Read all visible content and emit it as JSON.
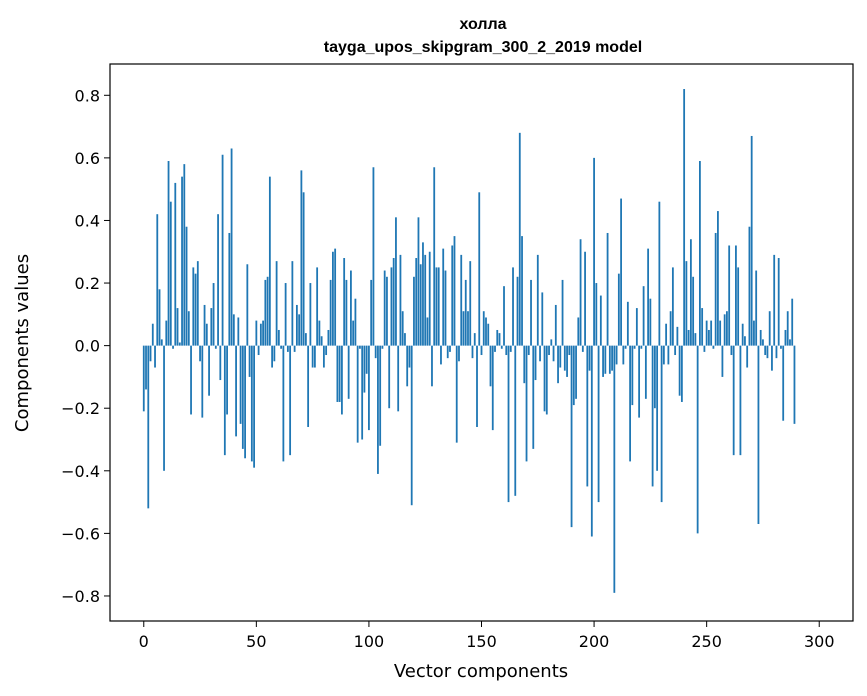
{
  "chart_data": {
    "type": "bar",
    "title": "холла",
    "subtitle": "tayga_upos_skipgram_300_2_2019 model",
    "xlabel": "Vector components",
    "ylabel": "Components values",
    "xlim": [
      -15,
      315
    ],
    "ylim": [
      -0.88,
      0.9
    ],
    "x_ticks": [
      0,
      50,
      100,
      150,
      200,
      250,
      300
    ],
    "y_ticks": [
      -0.8,
      -0.6,
      -0.4,
      -0.2,
      0.0,
      0.2,
      0.4,
      0.6,
      0.8
    ],
    "y_tick_labels": [
      "−0.8",
      "−0.6",
      "−0.4",
      "−0.2",
      "0.0",
      "0.2",
      "0.4",
      "0.6",
      "0.8"
    ],
    "grid": false,
    "bar_color": "#1f77b4",
    "values": [
      -0.21,
      -0.14,
      -0.52,
      -0.05,
      0.07,
      -0.07,
      0.42,
      0.18,
      0.02,
      -0.4,
      0.08,
      0.59,
      0.46,
      -0.01,
      0.52,
      0.12,
      0.01,
      0.54,
      0.58,
      0.38,
      0.11,
      -0.22,
      0.25,
      0.23,
      0.27,
      -0.05,
      -0.23,
      0.13,
      0.07,
      -0.16,
      0.12,
      0.2,
      -0.01,
      0.42,
      -0.11,
      0.61,
      -0.35,
      -0.22,
      0.36,
      0.63,
      0.1,
      -0.29,
      0.09,
      -0.25,
      -0.33,
      -0.36,
      0.26,
      -0.1,
      -0.37,
      -0.39,
      0.08,
      -0.03,
      0.07,
      0.08,
      0.21,
      0.22,
      0.54,
      -0.07,
      -0.05,
      0.27,
      0.05,
      -0.01,
      -0.37,
      0.2,
      -0.02,
      -0.35,
      0.27,
      -0.02,
      0.13,
      0.1,
      0.56,
      0.49,
      0.04,
      -0.26,
      0.2,
      -0.07,
      -0.07,
      0.25,
      0.08,
      0.03,
      -0.07,
      -0.03,
      0.05,
      0.21,
      0.3,
      0.31,
      -0.18,
      -0.18,
      -0.22,
      0.28,
      0.21,
      -0.17,
      0.24,
      0.08,
      0.15,
      -0.31,
      -0.01,
      -0.3,
      -0.15,
      -0.09,
      -0.27,
      0.21,
      0.57,
      -0.04,
      -0.41,
      -0.32,
      -0.01,
      0.24,
      0.22,
      -0.2,
      0.25,
      0.28,
      0.41,
      -0.21,
      0.29,
      0.11,
      0.04,
      -0.13,
      -0.07,
      -0.51,
      0.22,
      0.28,
      0.41,
      0.26,
      0.33,
      0.29,
      0.09,
      0.3,
      -0.13,
      0.57,
      0.25,
      0.25,
      -0.06,
      0.31,
      0.24,
      -0.04,
      -0.02,
      0.32,
      0.35,
      -0.31,
      -0.05,
      0.29,
      0.11,
      0.21,
      0.11,
      0.27,
      -0.04,
      0.04,
      -0.26,
      0.49,
      -0.03,
      0.11,
      0.09,
      0.07,
      -0.13,
      -0.27,
      -0.02,
      0.05,
      0.04,
      -0.01,
      0.19,
      -0.03,
      -0.5,
      -0.02,
      0.25,
      -0.48,
      0.22,
      0.68,
      0.35,
      -0.12,
      -0.37,
      -0.03,
      0.21,
      -0.33,
      -0.11,
      0.29,
      -0.05,
      0.17,
      -0.21,
      -0.22,
      -0.03,
      0.02,
      -0.05,
      0.13,
      -0.12,
      -0.07,
      0.21,
      -0.08,
      -0.1,
      -0.03,
      -0.58,
      -0.19,
      -0.17,
      0.09,
      0.34,
      -0.02,
      0.3,
      -0.45,
      -0.08,
      -0.61,
      0.6,
      0.2,
      -0.5,
      0.16,
      -0.1,
      -0.09,
      0.36,
      -0.09,
      -0.08,
      -0.79,
      -0.06,
      0.23,
      0.47,
      -0.06,
      -0.01,
      0.14,
      -0.37,
      -0.19,
      -0.01,
      0.12,
      -0.23,
      -0.01,
      0.19,
      -0.17,
      0.31,
      0.15,
      -0.45,
      -0.2,
      -0.4,
      0.46,
      -0.5,
      -0.06,
      0.07,
      -0.06,
      0.11,
      0.25,
      -0.03,
      0.06,
      -0.16,
      -0.18,
      0.82,
      0.27,
      0.05,
      0.34,
      0.22,
      0.04,
      -0.6,
      0.59,
      0.12,
      -0.02,
      0.08,
      0.05,
      0.08,
      -0.01,
      0.36,
      0.43,
      0.08,
      -0.1,
      0.1,
      0.11,
      0.32,
      -0.03,
      -0.35,
      0.32,
      0.25,
      -0.35,
      0.07,
      0.03,
      -0.07,
      0.38,
      0.67,
      0.08,
      0.24,
      -0.57,
      0.05,
      0.02,
      -0.03,
      -0.04,
      0.11,
      -0.08,
      0.29,
      -0.04,
      0.28,
      -0.01,
      -0.24,
      0.05,
      0.11,
      0.02,
      0.15,
      -0.25
    ]
  }
}
